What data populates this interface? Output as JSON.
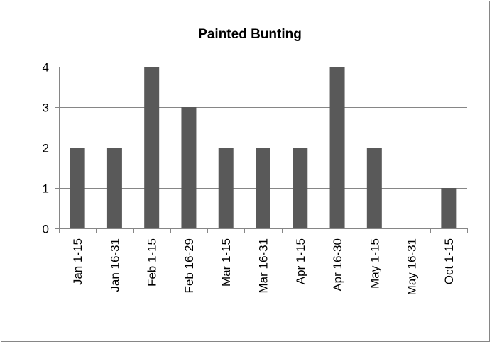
{
  "chart_data": {
    "type": "bar",
    "title": "Painted Bunting",
    "xlabel": "",
    "ylabel": "",
    "categories": [
      "Jan 1-15",
      "Jan 16-31",
      "Feb 1-15",
      "Feb 16-29",
      "Mar 1-15",
      "Mar 16-31",
      "Apr 1-15",
      "Apr 16-30",
      "May 1-15",
      "May 16-31",
      "Oct 1-15"
    ],
    "values": [
      2,
      2,
      4,
      3,
      2,
      2,
      2,
      4,
      2,
      0,
      1
    ],
    "ylim": [
      0,
      4
    ],
    "yticks": [
      0,
      1,
      2,
      3,
      4
    ],
    "grid": true,
    "legend": "none",
    "colors": {
      "bar": "#595959",
      "grid": "#868686",
      "axis": "#868686"
    }
  }
}
